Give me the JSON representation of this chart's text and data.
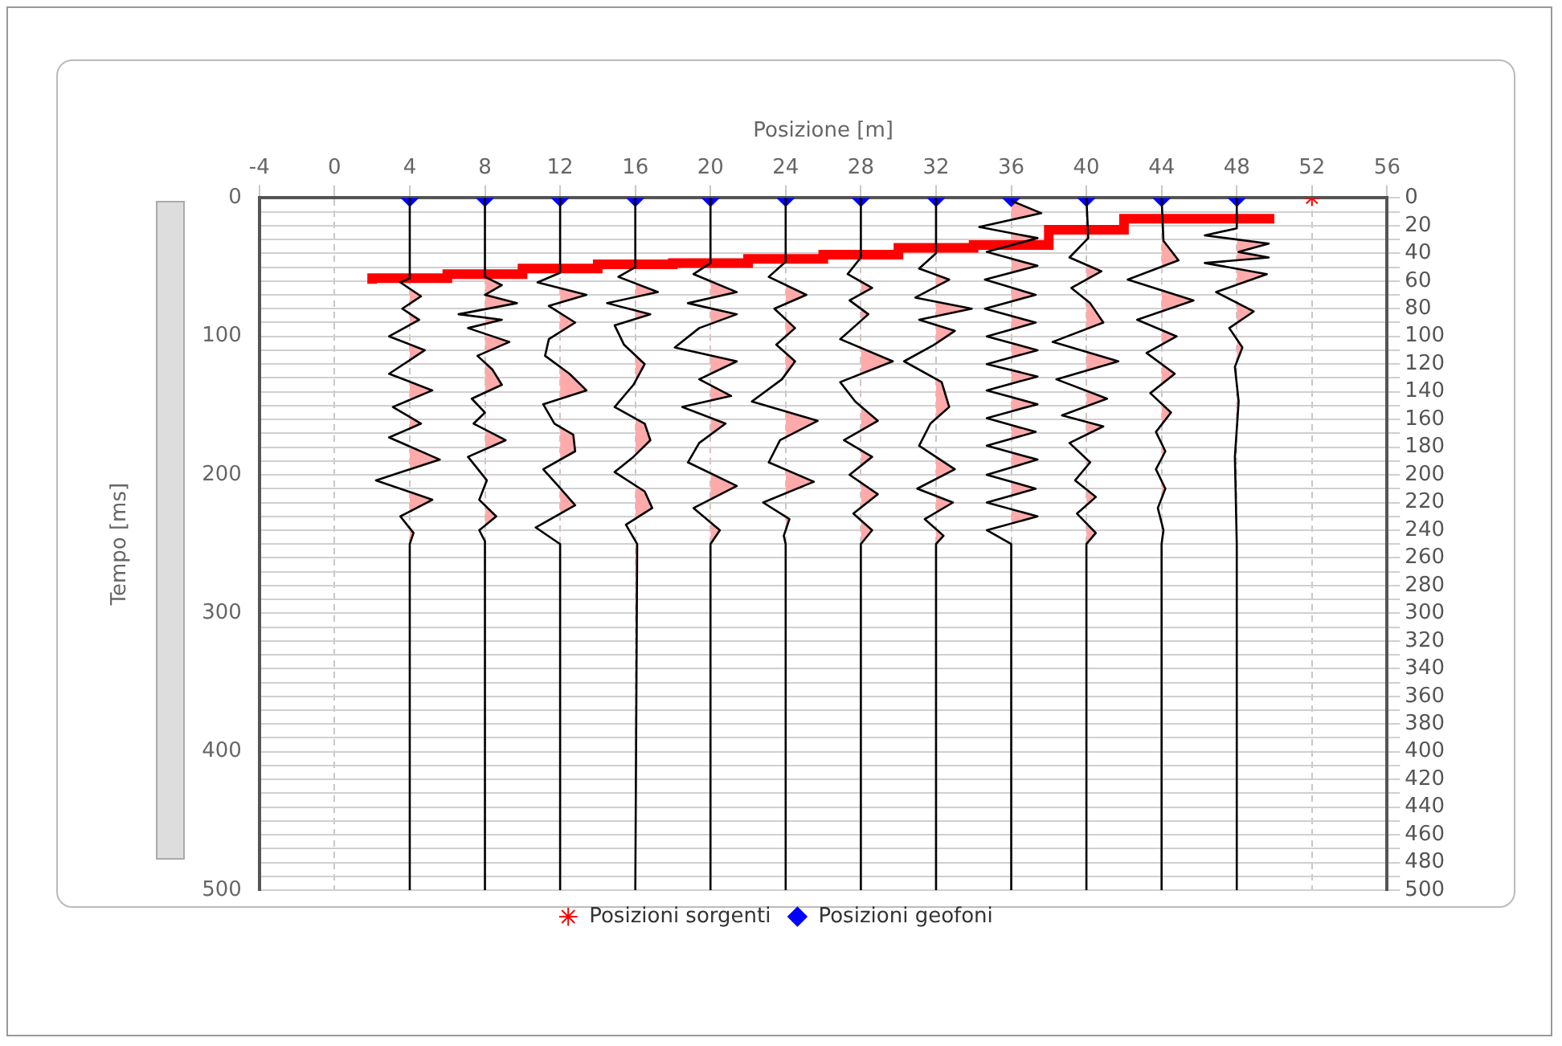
{
  "chart_data": {
    "type": "line",
    "xlabel": "Posizione [m]",
    "ylabel": "Tempo [ms]",
    "xlim": [
      -4,
      56
    ],
    "xticks": [
      -4,
      0,
      4,
      8,
      12,
      16,
      20,
      24,
      28,
      32,
      36,
      40,
      44,
      48,
      52,
      56
    ],
    "ylim": [
      500,
      0
    ],
    "yticks": [
      0,
      100,
      200,
      300,
      400,
      500
    ],
    "y2lim": [
      500,
      0
    ],
    "y2ticks": [
      0,
      {
        "value": 10,
        "label": null
      },
      20,
      {
        "value": 30,
        "label": null
      },
      40,
      {
        "value": 50,
        "label": null
      },
      60,
      {
        "value": 70,
        "label": null
      },
      80,
      {
        "value": 90,
        "label": null
      },
      100,
      {
        "value": 110,
        "label": null
      },
      120,
      {
        "value": 130,
        "label": null
      },
      140,
      {
        "value": 150,
        "label": null
      },
      160,
      {
        "value": 170,
        "label": null
      },
      180,
      {
        "value": 190,
        "label": null
      },
      200,
      {
        "value": 210,
        "label": null
      },
      220,
      {
        "value": 230,
        "label": null
      },
      240,
      {
        "value": 250,
        "label": null
      },
      260,
      {
        "value": 270,
        "label": null
      },
      280,
      {
        "value": 290,
        "label": null
      },
      300,
      {
        "value": 310,
        "label": null
      },
      320,
      {
        "value": 330,
        "label": null
      },
      340,
      {
        "value": 350,
        "label": null
      },
      360,
      {
        "value": 370,
        "label": null
      },
      380,
      {
        "value": 390,
        "label": null
      },
      400,
      {
        "value": 410,
        "label": null
      },
      420,
      {
        "value": 430,
        "label": null
      },
      440,
      {
        "value": 450,
        "label": null
      },
      460,
      {
        "value": 470,
        "label": null
      },
      480,
      {
        "value": 490,
        "label": null
      },
      500
    ],
    "grid": true,
    "legend": "bottom",
    "series": [
      {
        "type": "line",
        "color": "#000000",
        "x": [
          4,
          4,
          3.5,
          4.6,
          3.6,
          4.5,
          2.9,
          4.8,
          2.9,
          5.2,
          3.1,
          4.6,
          2.9,
          5.6,
          2.2,
          5.2,
          3.5,
          4.2,
          4,
          4
        ],
        "values": [
          0,
          58,
          61,
          71,
          80,
          88,
          100,
          110,
          127,
          139,
          151,
          163,
          173,
          189,
          204,
          218,
          230,
          242,
          250,
          500
        ]
      },
      {
        "type": "line",
        "color": "#000000",
        "x": [
          8,
          8,
          8.9,
          8,
          9.7,
          6.6,
          8.9,
          7.1,
          9.3,
          7.6,
          8.4,
          8.9,
          7.3,
          8,
          7.4,
          9.1,
          7.1,
          8.1,
          7.7,
          8.6,
          7.7,
          8,
          8
        ],
        "values": [
          0,
          57,
          63,
          70,
          76,
          84,
          88,
          94,
          104,
          114,
          124,
          135,
          145,
          155,
          163,
          175,
          187,
          204,
          218,
          230,
          240,
          248,
          500
        ]
      },
      {
        "type": "line",
        "color": "#000000",
        "x": [
          12,
          12,
          10.8,
          13.4,
          11.4,
          12.8,
          11.4,
          11.2,
          12.5,
          13.4,
          11.1,
          11.7,
          12.7,
          12.8,
          11.1,
          11.9,
          12.8,
          10.7,
          12,
          12
        ],
        "values": [
          0,
          54,
          61,
          70,
          78,
          90,
          102,
          114,
          127,
          139,
          149,
          163,
          171,
          183,
          196,
          208,
          222,
          238,
          250,
          500
        ]
      },
      {
        "type": "line",
        "color": "#000000",
        "x": [
          16,
          16,
          15.1,
          17.2,
          14.5,
          16.8,
          14.9,
          15.4,
          16.5,
          15.9,
          14.9,
          16.5,
          16.8,
          15.9,
          14.9,
          16.5,
          16.9,
          15.5,
          16.1,
          16
        ],
        "values": [
          0,
          50,
          57,
          68,
          76,
          84,
          92,
          106,
          120,
          135,
          151,
          163,
          175,
          187,
          198,
          212,
          224,
          236,
          250,
          500
        ]
      },
      {
        "type": "line",
        "color": "#000000",
        "x": [
          20,
          20,
          19.1,
          21.4,
          18.8,
          21.4,
          19.4,
          18.1,
          21.4,
          19.4,
          21.1,
          18.5,
          20.8,
          19.4,
          18.8,
          21.4,
          19.1,
          20.5,
          20,
          20
        ],
        "values": [
          0,
          47,
          55,
          68,
          76,
          84,
          94,
          108,
          118,
          131,
          143,
          151,
          163,
          177,
          191,
          208,
          224,
          240,
          250,
          500
        ]
      },
      {
        "type": "line",
        "color": "#000000",
        "x": [
          24,
          24,
          23.1,
          25.1,
          23.4,
          24.5,
          23.5,
          24.5,
          23.8,
          22.2,
          25.7,
          23.7,
          23.1,
          25.5,
          22.8,
          24.2,
          23.9,
          24,
          24
        ],
        "values": [
          0,
          46,
          57,
          70,
          80,
          94,
          106,
          118,
          131,
          147,
          161,
          175,
          191,
          205,
          220,
          232,
          244,
          250,
          500
        ]
      },
      {
        "type": "line",
        "color": "#000000",
        "x": [
          28,
          28,
          27.3,
          28.6,
          27.4,
          28.4,
          26.9,
          29.7,
          26.9,
          27.7,
          28.9,
          27.1,
          28.6,
          27.4,
          28.9,
          27.6,
          28.6,
          28,
          28
        ],
        "values": [
          0,
          43,
          55,
          65,
          74,
          84,
          102,
          118,
          133,
          147,
          161,
          175,
          187,
          200,
          214,
          228,
          240,
          250,
          500
        ]
      },
      {
        "type": "line",
        "color": "#000000",
        "x": [
          32,
          32,
          31.1,
          32.7,
          30.9,
          33.9,
          31.1,
          33,
          31.9,
          30.3,
          32.3,
          32.7,
          31.7,
          31.1,
          33,
          31,
          32.9,
          31.4,
          32.4,
          32,
          32
        ],
        "values": [
          0,
          40,
          51,
          59,
          72,
          80,
          88,
          96,
          106,
          118,
          133,
          151,
          163,
          179,
          196,
          210,
          220,
          232,
          244,
          250,
          500
        ]
      },
      {
        "type": "line",
        "color": "#000000",
        "x": [
          36,
          37.6,
          34.3,
          37.4,
          34.7,
          37.4,
          34.6,
          37.3,
          34.6,
          37.3,
          34.7,
          37.4,
          34.7,
          37.4,
          34.7,
          37.4,
          34.7,
          37.3,
          34.7,
          37.4,
          34.7,
          37.3,
          34.7,
          37.4,
          34.7,
          36,
          36
        ],
        "values": [
          2,
          11,
          21,
          29,
          39,
          49,
          59,
          70,
          80,
          90,
          100,
          110,
          120,
          129,
          139,
          149,
          159,
          169,
          179,
          189,
          200,
          210,
          220,
          230,
          240,
          250,
          500
        ]
      },
      {
        "type": "line",
        "color": "#000000",
        "x": [
          40,
          40.1,
          39.1,
          40.8,
          39.2,
          40.2,
          40.9,
          38.2,
          41.7,
          38.4,
          41.1,
          38.7,
          40.9,
          39.1,
          40.2,
          39.4,
          40.5,
          39.5,
          40.5,
          40,
          40
        ],
        "values": [
          0,
          29,
          43,
          53,
          65,
          76,
          90,
          104,
          118,
          131,
          145,
          157,
          165,
          177,
          191,
          204,
          216,
          228,
          242,
          250,
          500
        ]
      },
      {
        "type": "line",
        "color": "#000000",
        "x": [
          44,
          44.1,
          44.9,
          42.2,
          45.7,
          42.7,
          44.8,
          43.2,
          44.7,
          43.4,
          44.5,
          43.7,
          44.2,
          43.7,
          44.2,
          43.8,
          44.1,
          44,
          44
        ],
        "values": [
          0,
          31,
          45,
          59,
          74,
          88,
          100,
          112,
          127,
          141,
          155,
          169,
          183,
          196,
          210,
          224,
          240,
          250,
          500
        ]
      },
      {
        "type": "line",
        "color": "#000000",
        "x": [
          48,
          48,
          46.3,
          49.7,
          48.1,
          49.7,
          46.3,
          49.6,
          46.9,
          48.9,
          47.6,
          48.3,
          47.9,
          48.1,
          47.9,
          48,
          48
        ],
        "values": [
          0,
          22,
          27,
          33,
          39,
          43,
          47,
          55,
          68,
          82,
          94,
          108,
          122,
          147,
          187,
          250,
          500
        ]
      },
      {
        "type": "step",
        "color": "#ff0000",
        "x": [
          2,
          6,
          10,
          14,
          18,
          22,
          26,
          30,
          34,
          38,
          42,
          46,
          50
        ],
        "values": [
          62,
          58,
          55,
          51,
          48,
          47,
          44,
          41,
          36,
          34,
          23,
          15,
          15
        ]
      },
      {
        "type": "scatter",
        "name": "Posizioni sorgenti",
        "color": "#ff0000",
        "marker": "cross",
        "x": [
          52
        ],
        "values": [
          0
        ]
      },
      {
        "type": "scatter",
        "name": "Posizioni geofoni",
        "color": "#0000ff",
        "marker": "diamond",
        "x": [
          4,
          8,
          12,
          16,
          20,
          24,
          28,
          32,
          36,
          40,
          44,
          48
        ],
        "values": [
          0,
          0,
          0,
          0,
          0,
          0,
          0,
          0,
          0,
          0,
          0,
          0
        ]
      }
    ]
  }
}
